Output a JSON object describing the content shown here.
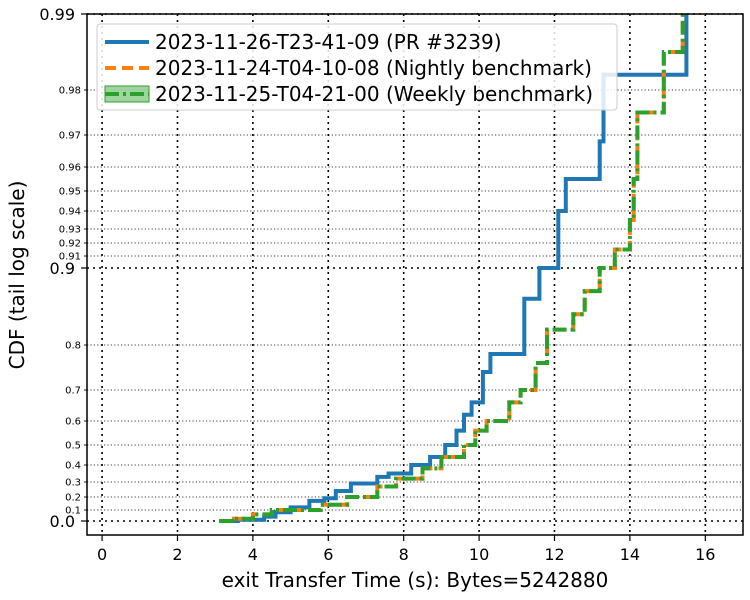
{
  "chart_data": {
    "type": "line",
    "subtype": "step-cdf",
    "title": "",
    "xlabel": "exit Transfer Time (s): Bytes=5242880",
    "ylabel": "CDF (tail log scale)",
    "xlim": [
      -0.4,
      17.0
    ],
    "x_ticks": [
      0,
      2,
      4,
      6,
      8,
      10,
      12,
      14,
      16
    ],
    "y_scale": "tail-log (logit-like, denser near 0.99)",
    "y_ticks_major": [
      0.0,
      0.9,
      0.99
    ],
    "y_ticks_minor": [
      0.1,
      0.2,
      0.3,
      0.4,
      0.5,
      0.6,
      0.7,
      0.8,
      0.91,
      0.92,
      0.93,
      0.94,
      0.95,
      0.96,
      0.97,
      0.98
    ],
    "grid": true,
    "legend_position": "top-left",
    "series": [
      {
        "name": "2023-11-26-T23-41-09 (PR #3239)",
        "color": "#1f77b4",
        "style": "solid",
        "points": [
          [
            3.3,
            0.0
          ],
          [
            3.6,
            0.012
          ],
          [
            4.3,
            0.04
          ],
          [
            4.6,
            0.08
          ],
          [
            5.0,
            0.12
          ],
          [
            5.5,
            0.17
          ],
          [
            5.9,
            0.19
          ],
          [
            6.2,
            0.24
          ],
          [
            6.6,
            0.29
          ],
          [
            7.3,
            0.33
          ],
          [
            7.6,
            0.35
          ],
          [
            8.2,
            0.4
          ],
          [
            8.7,
            0.44
          ],
          [
            9.1,
            0.5
          ],
          [
            9.4,
            0.56
          ],
          [
            9.6,
            0.62
          ],
          [
            9.8,
            0.66
          ],
          [
            10.1,
            0.74
          ],
          [
            10.3,
            0.78
          ],
          [
            11.2,
            0.86
          ],
          [
            11.6,
            0.9
          ],
          [
            12.1,
            0.94
          ],
          [
            12.3,
            0.955
          ],
          [
            13.2,
            0.968
          ],
          [
            13.3,
            0.982
          ],
          [
            15.5,
            0.99
          ]
        ]
      },
      {
        "name": "2023-11-24-T04-10-08 (Nightly benchmark)",
        "color": "#ff7f0e",
        "style": "dashed",
        "points": [
          [
            3.1,
            0.0
          ],
          [
            3.5,
            0.02
          ],
          [
            4.0,
            0.06
          ],
          [
            4.5,
            0.1
          ],
          [
            5.8,
            0.14
          ],
          [
            6.5,
            0.2
          ],
          [
            7.3,
            0.27
          ],
          [
            7.8,
            0.32
          ],
          [
            8.5,
            0.38
          ],
          [
            9.0,
            0.44
          ],
          [
            9.6,
            0.5
          ],
          [
            9.9,
            0.56
          ],
          [
            10.2,
            0.6
          ],
          [
            10.8,
            0.66
          ],
          [
            11.1,
            0.7
          ],
          [
            11.5,
            0.76
          ],
          [
            11.8,
            0.82
          ],
          [
            12.5,
            0.84
          ],
          [
            12.8,
            0.87
          ],
          [
            13.2,
            0.9
          ],
          [
            13.6,
            0.915
          ],
          [
            14.0,
            0.935
          ],
          [
            14.1,
            0.955
          ],
          [
            14.2,
            0.975
          ],
          [
            14.9,
            0.985
          ],
          [
            15.4,
            0.99
          ]
        ]
      },
      {
        "name": "2023-11-25-T04-21-00 (Weekly benchmark)",
        "color": "#2ca02c",
        "style": "dash-dot",
        "points": [
          [
            3.1,
            0.0
          ],
          [
            3.5,
            0.02
          ],
          [
            4.0,
            0.06
          ],
          [
            4.5,
            0.1
          ],
          [
            5.8,
            0.14
          ],
          [
            6.5,
            0.2
          ],
          [
            7.3,
            0.27
          ],
          [
            7.8,
            0.32
          ],
          [
            8.5,
            0.38
          ],
          [
            9.0,
            0.44
          ],
          [
            9.6,
            0.5
          ],
          [
            9.9,
            0.56
          ],
          [
            10.2,
            0.6
          ],
          [
            10.8,
            0.66
          ],
          [
            11.1,
            0.7
          ],
          [
            11.5,
            0.76
          ],
          [
            11.8,
            0.82
          ],
          [
            12.5,
            0.84
          ],
          [
            12.8,
            0.87
          ],
          [
            13.2,
            0.9
          ],
          [
            13.6,
            0.915
          ],
          [
            14.0,
            0.935
          ],
          [
            14.1,
            0.955
          ],
          [
            14.2,
            0.975
          ],
          [
            14.9,
            0.985
          ],
          [
            15.4,
            0.99
          ]
        ]
      }
    ]
  }
}
